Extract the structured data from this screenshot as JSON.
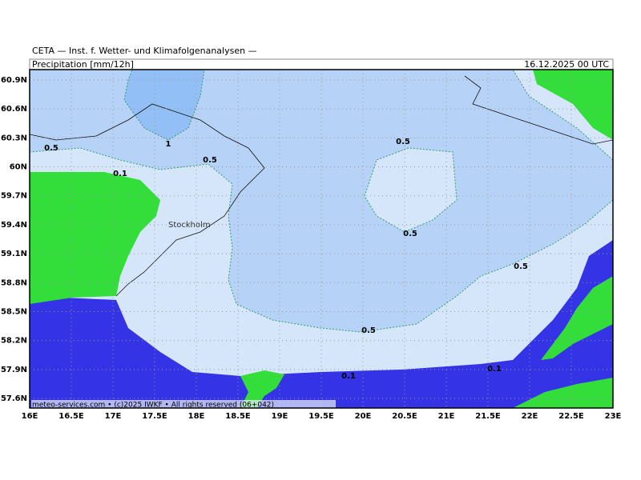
{
  "header": {
    "org": "CETA — Inst. f. Wetter- und Klimafolgenanalysen —",
    "variable": "Precipitation [mm/12h]",
    "timestamp": "16.12.2025 00 UTC"
  },
  "axes": {
    "lon_labels": [
      "16E",
      "16.5E",
      "17E",
      "17.5E",
      "18E",
      "18.5E",
      "19E",
      "19.5E",
      "20E",
      "20.5E",
      "21E",
      "21.5E",
      "22E",
      "22.5E",
      "23E"
    ],
    "lat_labels": [
      "60.9N",
      "60.6N",
      "60.3N",
      "60N",
      "59.7N",
      "59.4N",
      "59.1N",
      "58.8N",
      "58.5N",
      "58.2N",
      "57.9N",
      "57.6N"
    ]
  },
  "contour_labels": [
    "0.5",
    "1",
    "0.5",
    "0.1",
    "0.5",
    "0.5",
    "0.5",
    "0.5",
    "0.1",
    "0.1"
  ],
  "places": [
    "Stockholm"
  ],
  "footer": "meteo-services.com • (c)2025 IWKF • All rights reserved (06+042)"
}
